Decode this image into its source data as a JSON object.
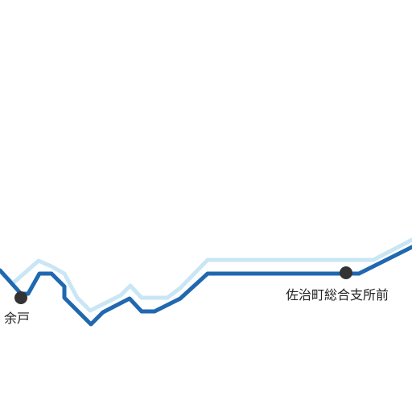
{
  "map": {
    "colors": {
      "route_main": "#2068b0",
      "route_shadow": "#c9e6f4",
      "stop_marker": "#333333",
      "label_text": "#222222",
      "background": "#ffffff"
    },
    "stops": [
      {
        "id": "yodo",
        "label": "余戸"
      },
      {
        "id": "saji",
        "label": "佐治町総合支所前"
      }
    ]
  }
}
